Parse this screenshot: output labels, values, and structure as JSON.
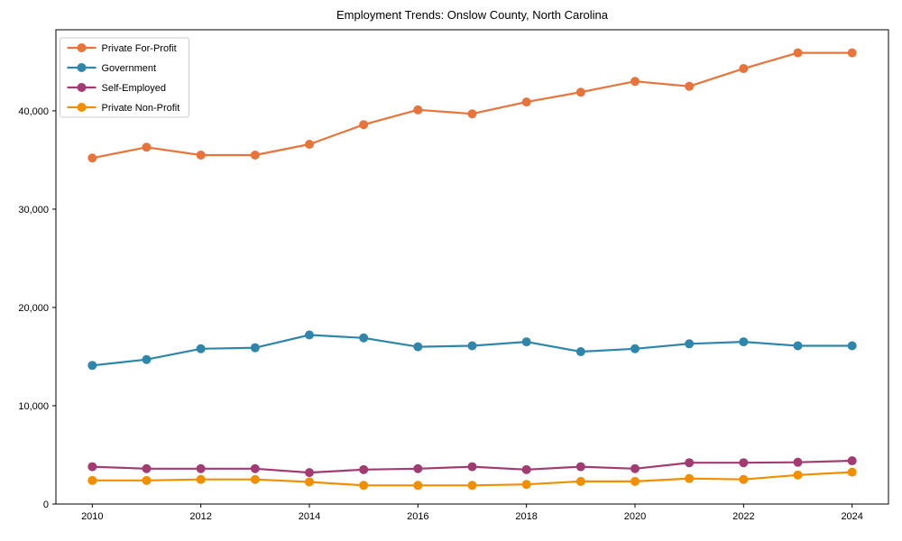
{
  "chart_data": {
    "type": "line",
    "title": "Employment Trends: Onslow County, North Carolina",
    "xlabel": "",
    "ylabel": "",
    "x": [
      2010,
      2011,
      2012,
      2013,
      2014,
      2015,
      2016,
      2017,
      2018,
      2019,
      2020,
      2021,
      2022,
      2023,
      2024
    ],
    "xticks": [
      2010,
      2012,
      2014,
      2016,
      2018,
      2020,
      2022,
      2024
    ],
    "yticks": [
      0,
      10000,
      20000,
      30000,
      40000
    ],
    "ytick_labels": [
      "0",
      "10,000",
      "20,000",
      "30,000",
      "40,000"
    ],
    "xlim": [
      2009.33,
      2024.67
    ],
    "ylim": [
      0,
      48250
    ],
    "grid": false,
    "legend_position": "upper-left",
    "marker": "circle",
    "background_color": "#ffffff",
    "axis_color": "#000000",
    "legend_border_color": "#cccccc",
    "series": [
      {
        "name": "Private For-Profit",
        "color": "#E8743B",
        "values": [
          35200,
          36300,
          35500,
          35500,
          36600,
          38600,
          40100,
          39700,
          40900,
          41900,
          43000,
          42500,
          44300,
          45900,
          45900
        ]
      },
      {
        "name": "Government",
        "color": "#2E86AB",
        "values": [
          14100,
          14700,
          15800,
          15900,
          17200,
          16900,
          16000,
          16100,
          16500,
          15500,
          15800,
          16300,
          16500,
          16100,
          16100
        ]
      },
      {
        "name": "Self-Employed",
        "color": "#A23B72",
        "values": [
          3800,
          3600,
          3600,
          3600,
          3200,
          3500,
          3600,
          3800,
          3500,
          3800,
          3600,
          4200,
          4200,
          4250,
          4400
        ]
      },
      {
        "name": "Private Non-Profit",
        "color": "#F18F01",
        "values": [
          2400,
          2400,
          2500,
          2500,
          2250,
          1900,
          1900,
          1900,
          2000,
          2300,
          2300,
          2600,
          2500,
          2950,
          3250
        ]
      }
    ]
  }
}
